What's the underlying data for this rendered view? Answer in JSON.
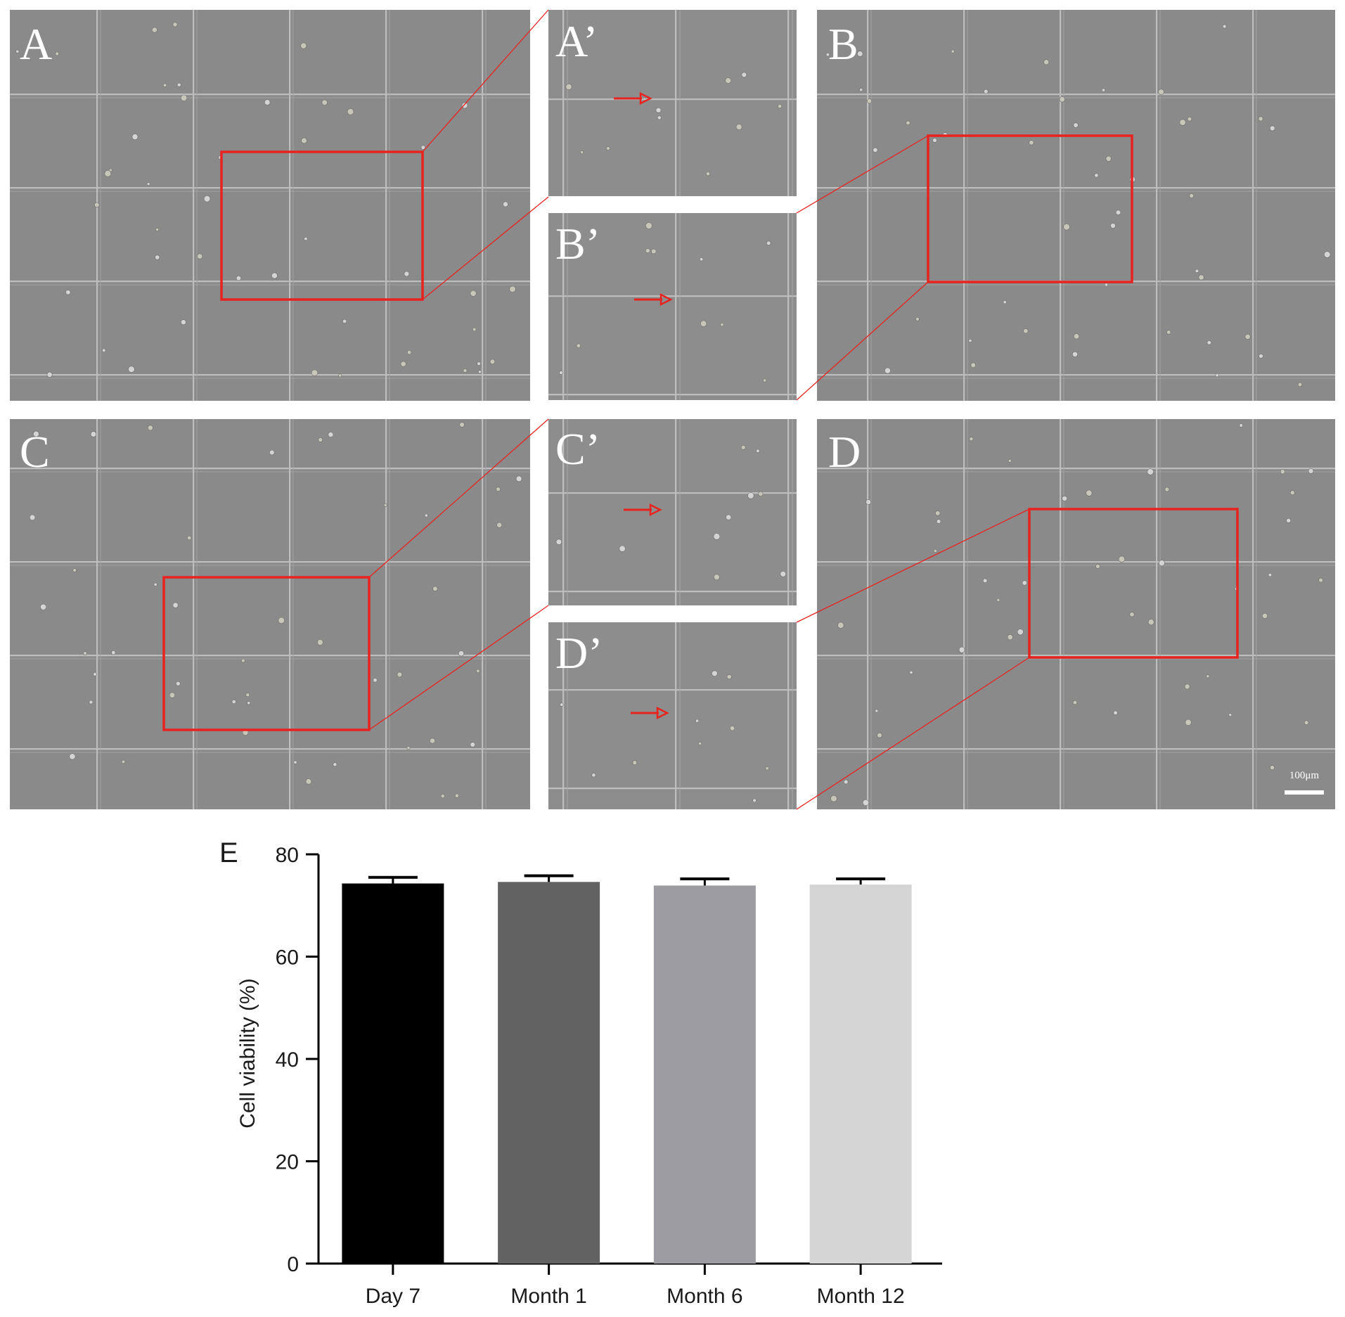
{
  "micrographs": {
    "background_color": "#8a8a8a",
    "grid_line_color": "#b9b9b9",
    "highlight_color": "#e8231f",
    "panels": [
      {
        "label": "A"
      },
      {
        "label": "A’"
      },
      {
        "label": "B’"
      },
      {
        "label": "B"
      },
      {
        "label": "C"
      },
      {
        "label": "C’"
      },
      {
        "label": "D’"
      },
      {
        "label": "D"
      }
    ],
    "scale_bar_label": "100μm"
  },
  "chart_data": {
    "type": "bar",
    "panel_label": "E",
    "categories": [
      "Day 7",
      "Month 1",
      "Month 6",
      "Month 12"
    ],
    "values": [
      74.3,
      74.6,
      73.9,
      74.1
    ],
    "errors": [
      1.2,
      1.2,
      1.3,
      1.1
    ],
    "colors": [
      "#000000",
      "#626262",
      "#9c9ca2",
      "#d5d5d5"
    ],
    "ylabel": "Cell viability (%)",
    "xlabel": "",
    "ylim": [
      0,
      80
    ],
    "yticks": [
      0,
      20,
      40,
      60,
      80
    ],
    "grid": false,
    "legend": "none"
  }
}
